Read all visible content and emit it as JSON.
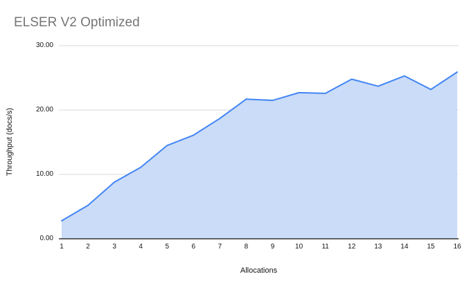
{
  "chart_data": {
    "type": "area",
    "title": "ELSER V2 Optimized",
    "xlabel": "Allocations",
    "ylabel": "Throughput (docs/s)",
    "categories": [
      1,
      2,
      3,
      4,
      5,
      6,
      7,
      8,
      9,
      10,
      11,
      12,
      13,
      14,
      15,
      16
    ],
    "values": [
      2.8,
      5.2,
      8.8,
      11.1,
      14.5,
      16.1,
      18.7,
      21.7,
      21.5,
      22.7,
      22.6,
      24.8,
      23.7,
      25.3,
      23.2,
      25.9
    ],
    "ylim": [
      0,
      30
    ],
    "yticks": [
      0,
      10,
      20,
      30
    ],
    "ytick_labels": [
      "0.00",
      "10.00",
      "20.00",
      "30.00"
    ],
    "grid": "horizontal-only",
    "legend": "none",
    "colors": {
      "line": "#4285f4",
      "fill": "#cbdcf8",
      "gridline": "#d9d9d9",
      "axis_line": "#333333",
      "title_text": "#757575",
      "tick_text": "#111111"
    }
  }
}
